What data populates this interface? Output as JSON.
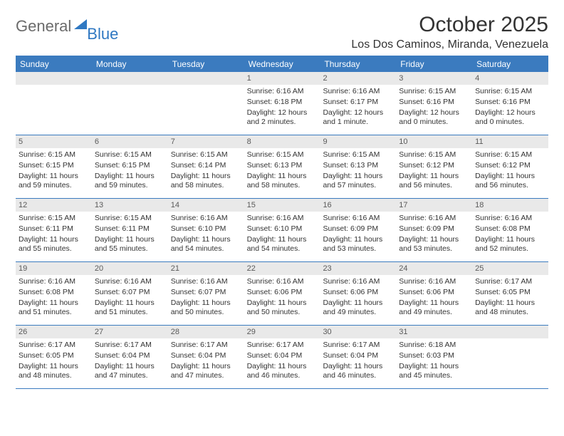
{
  "logo": {
    "text_general": "General",
    "text_blue": "Blue"
  },
  "title": "October 2025",
  "location": "Los Dos Caminos, Miranda, Venezuela",
  "colors": {
    "header_bg": "#3b7bbf",
    "header_text": "#ffffff",
    "daynum_bg": "#e9e9e9",
    "daynum_text": "#5a5a5a",
    "body_text": "#333333",
    "logo_gray": "#6b6b6b",
    "logo_blue": "#2f78c2",
    "page_bg": "#ffffff"
  },
  "typography": {
    "title_fontsize": 30,
    "location_fontsize": 16,
    "dayheader_fontsize": 12,
    "daynum_fontsize": 11,
    "body_fontsize": 10.5,
    "logo_fontsize": 22
  },
  "day_names": [
    "Sunday",
    "Monday",
    "Tuesday",
    "Wednesday",
    "Thursday",
    "Friday",
    "Saturday"
  ],
  "weeks": [
    [
      {
        "n": "",
        "sr": "",
        "ss": "",
        "dl": ""
      },
      {
        "n": "",
        "sr": "",
        "ss": "",
        "dl": ""
      },
      {
        "n": "",
        "sr": "",
        "ss": "",
        "dl": ""
      },
      {
        "n": "1",
        "sr": "Sunrise: 6:16 AM",
        "ss": "Sunset: 6:18 PM",
        "dl": "Daylight: 12 hours and 2 minutes."
      },
      {
        "n": "2",
        "sr": "Sunrise: 6:16 AM",
        "ss": "Sunset: 6:17 PM",
        "dl": "Daylight: 12 hours and 1 minute."
      },
      {
        "n": "3",
        "sr": "Sunrise: 6:15 AM",
        "ss": "Sunset: 6:16 PM",
        "dl": "Daylight: 12 hours and 0 minutes."
      },
      {
        "n": "4",
        "sr": "Sunrise: 6:15 AM",
        "ss": "Sunset: 6:16 PM",
        "dl": "Daylight: 12 hours and 0 minutes."
      }
    ],
    [
      {
        "n": "5",
        "sr": "Sunrise: 6:15 AM",
        "ss": "Sunset: 6:15 PM",
        "dl": "Daylight: 11 hours and 59 minutes."
      },
      {
        "n": "6",
        "sr": "Sunrise: 6:15 AM",
        "ss": "Sunset: 6:15 PM",
        "dl": "Daylight: 11 hours and 59 minutes."
      },
      {
        "n": "7",
        "sr": "Sunrise: 6:15 AM",
        "ss": "Sunset: 6:14 PM",
        "dl": "Daylight: 11 hours and 58 minutes."
      },
      {
        "n": "8",
        "sr": "Sunrise: 6:15 AM",
        "ss": "Sunset: 6:13 PM",
        "dl": "Daylight: 11 hours and 58 minutes."
      },
      {
        "n": "9",
        "sr": "Sunrise: 6:15 AM",
        "ss": "Sunset: 6:13 PM",
        "dl": "Daylight: 11 hours and 57 minutes."
      },
      {
        "n": "10",
        "sr": "Sunrise: 6:15 AM",
        "ss": "Sunset: 6:12 PM",
        "dl": "Daylight: 11 hours and 56 minutes."
      },
      {
        "n": "11",
        "sr": "Sunrise: 6:15 AM",
        "ss": "Sunset: 6:12 PM",
        "dl": "Daylight: 11 hours and 56 minutes."
      }
    ],
    [
      {
        "n": "12",
        "sr": "Sunrise: 6:15 AM",
        "ss": "Sunset: 6:11 PM",
        "dl": "Daylight: 11 hours and 55 minutes."
      },
      {
        "n": "13",
        "sr": "Sunrise: 6:15 AM",
        "ss": "Sunset: 6:11 PM",
        "dl": "Daylight: 11 hours and 55 minutes."
      },
      {
        "n": "14",
        "sr": "Sunrise: 6:16 AM",
        "ss": "Sunset: 6:10 PM",
        "dl": "Daylight: 11 hours and 54 minutes."
      },
      {
        "n": "15",
        "sr": "Sunrise: 6:16 AM",
        "ss": "Sunset: 6:10 PM",
        "dl": "Daylight: 11 hours and 54 minutes."
      },
      {
        "n": "16",
        "sr": "Sunrise: 6:16 AM",
        "ss": "Sunset: 6:09 PM",
        "dl": "Daylight: 11 hours and 53 minutes."
      },
      {
        "n": "17",
        "sr": "Sunrise: 6:16 AM",
        "ss": "Sunset: 6:09 PM",
        "dl": "Daylight: 11 hours and 53 minutes."
      },
      {
        "n": "18",
        "sr": "Sunrise: 6:16 AM",
        "ss": "Sunset: 6:08 PM",
        "dl": "Daylight: 11 hours and 52 minutes."
      }
    ],
    [
      {
        "n": "19",
        "sr": "Sunrise: 6:16 AM",
        "ss": "Sunset: 6:08 PM",
        "dl": "Daylight: 11 hours and 51 minutes."
      },
      {
        "n": "20",
        "sr": "Sunrise: 6:16 AM",
        "ss": "Sunset: 6:07 PM",
        "dl": "Daylight: 11 hours and 51 minutes."
      },
      {
        "n": "21",
        "sr": "Sunrise: 6:16 AM",
        "ss": "Sunset: 6:07 PM",
        "dl": "Daylight: 11 hours and 50 minutes."
      },
      {
        "n": "22",
        "sr": "Sunrise: 6:16 AM",
        "ss": "Sunset: 6:06 PM",
        "dl": "Daylight: 11 hours and 50 minutes."
      },
      {
        "n": "23",
        "sr": "Sunrise: 6:16 AM",
        "ss": "Sunset: 6:06 PM",
        "dl": "Daylight: 11 hours and 49 minutes."
      },
      {
        "n": "24",
        "sr": "Sunrise: 6:16 AM",
        "ss": "Sunset: 6:06 PM",
        "dl": "Daylight: 11 hours and 49 minutes."
      },
      {
        "n": "25",
        "sr": "Sunrise: 6:17 AM",
        "ss": "Sunset: 6:05 PM",
        "dl": "Daylight: 11 hours and 48 minutes."
      }
    ],
    [
      {
        "n": "26",
        "sr": "Sunrise: 6:17 AM",
        "ss": "Sunset: 6:05 PM",
        "dl": "Daylight: 11 hours and 48 minutes."
      },
      {
        "n": "27",
        "sr": "Sunrise: 6:17 AM",
        "ss": "Sunset: 6:04 PM",
        "dl": "Daylight: 11 hours and 47 minutes."
      },
      {
        "n": "28",
        "sr": "Sunrise: 6:17 AM",
        "ss": "Sunset: 6:04 PM",
        "dl": "Daylight: 11 hours and 47 minutes."
      },
      {
        "n": "29",
        "sr": "Sunrise: 6:17 AM",
        "ss": "Sunset: 6:04 PM",
        "dl": "Daylight: 11 hours and 46 minutes."
      },
      {
        "n": "30",
        "sr": "Sunrise: 6:17 AM",
        "ss": "Sunset: 6:04 PM",
        "dl": "Daylight: 11 hours and 46 minutes."
      },
      {
        "n": "31",
        "sr": "Sunrise: 6:18 AM",
        "ss": "Sunset: 6:03 PM",
        "dl": "Daylight: 11 hours and 45 minutes."
      },
      {
        "n": "",
        "sr": "",
        "ss": "",
        "dl": ""
      }
    ]
  ]
}
